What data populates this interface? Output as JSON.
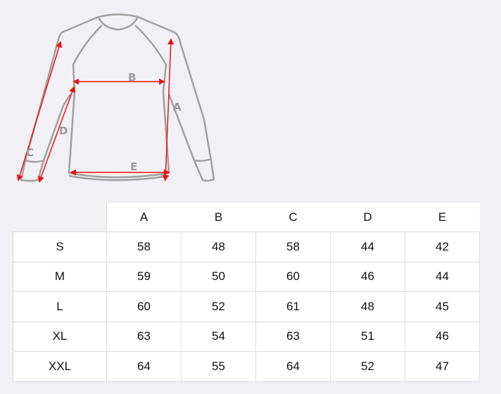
{
  "diagram": {
    "labels": {
      "A": "A",
      "B": "B",
      "C": "C",
      "D": "D",
      "E": "E"
    },
    "outline_color": "#a0a0a0",
    "arrow_color": "#ee1111"
  },
  "size_table": {
    "columns": [
      "",
      "A",
      "B",
      "C",
      "D",
      "E"
    ],
    "rows": [
      {
        "size": "S",
        "values": [
          "58",
          "48",
          "58",
          "44",
          "42"
        ]
      },
      {
        "size": "M",
        "values": [
          "59",
          "50",
          "60",
          "46",
          "44"
        ]
      },
      {
        "size": "L",
        "values": [
          "60",
          "52",
          "61",
          "48",
          "45"
        ]
      },
      {
        "size": "XL",
        "values": [
          "63",
          "54",
          "63",
          "51",
          "46"
        ]
      },
      {
        "size": "XXL",
        "values": [
          "64",
          "55",
          "64",
          "52",
          "47"
        ]
      }
    ]
  }
}
